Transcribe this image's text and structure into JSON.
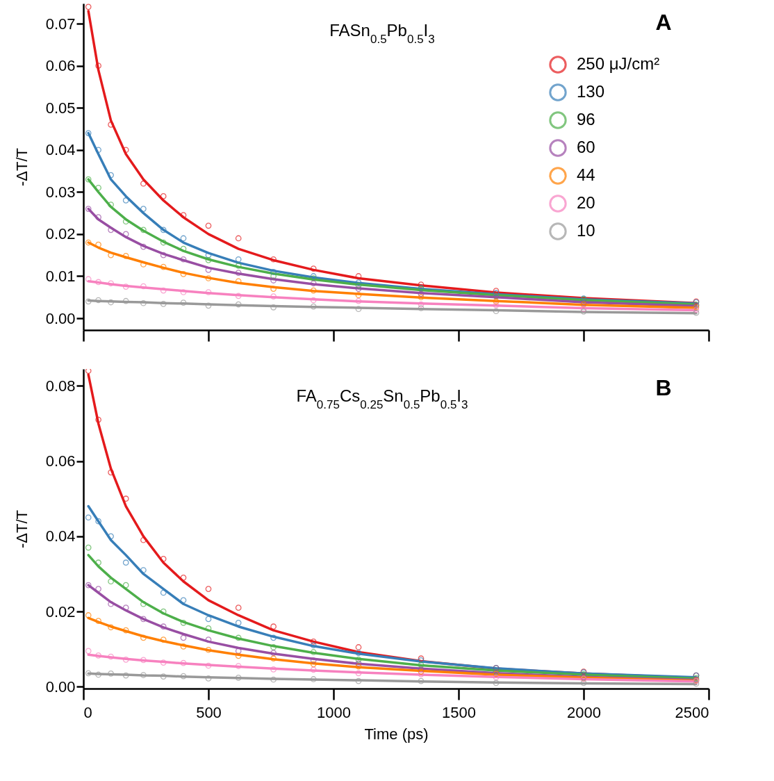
{
  "chart_data": [
    {
      "type": "scatter",
      "title": "FASn$_{0.5}$Pb$_{0.5}$I$_{3}$",
      "ylabel": "-ΔT/T",
      "annotations": [
        "A"
      ],
      "line_style": "solid",
      "legend": "top right",
      "tick_labels": "y",
      "x": [
        20,
        60,
        110,
        170,
        240,
        320,
        400,
        500,
        620,
        760,
        920,
        1100,
        1350,
        1650,
        2000,
        2450
      ],
      "xlim": [
        0,
        2500
      ],
      "xticks": [
        0,
        500,
        1000,
        1500,
        2000,
        2500
      ],
      "ylim": [
        -0.0028,
        0.0748
      ],
      "yticks": [
        {
          "value": 0,
          "label": "0.00"
        },
        0.01,
        0.02,
        0.03,
        0.04,
        0.05,
        0.06,
        0.07
      ],
      "series": [
        {
          "type": "scatter",
          "marker": "circle",
          "name": "250 μJ/cm²",
          "color": "#e41a1c",
          "values": [
            0.074,
            0.06,
            0.046,
            0.04,
            0.032,
            0.029,
            0.0245,
            0.022,
            0.019,
            0.014,
            0.0118,
            0.01,
            0.008,
            0.0065,
            0.0045,
            0.004
          ]
        },
        {
          "type": "scatter",
          "marker": "circle",
          "name": "130",
          "color": "#377eb8",
          "values": [
            0.044,
            0.04,
            0.034,
            0.028,
            0.026,
            0.021,
            0.019,
            0.015,
            0.014,
            0.011,
            0.01,
            0.0085,
            0.0072,
            0.006,
            0.0047,
            0.0038
          ]
        },
        {
          "type": "scatter",
          "marker": "circle",
          "name": "96",
          "color": "#4daf4a",
          "values": [
            0.033,
            0.031,
            0.027,
            0.023,
            0.021,
            0.018,
            0.0165,
            0.0138,
            0.0125,
            0.01,
            0.0095,
            0.0078,
            0.007,
            0.0053,
            0.0045,
            0.0032
          ]
        },
        {
          "type": "scatter",
          "marker": "circle",
          "name": "60",
          "color": "#984ea3",
          "values": [
            0.026,
            0.024,
            0.021,
            0.02,
            0.017,
            0.015,
            0.014,
            0.0115,
            0.0108,
            0.009,
            0.0083,
            0.007,
            0.0058,
            0.0052,
            0.0036,
            0.003
          ]
        },
        {
          "type": "scatter",
          "marker": "circle",
          "name": "44",
          "color": "#ff7f00",
          "values": [
            0.018,
            0.0175,
            0.015,
            0.0148,
            0.0128,
            0.0122,
            0.0105,
            0.0095,
            0.0088,
            0.007,
            0.0066,
            0.0055,
            0.005,
            0.004,
            0.0033,
            0.0026
          ]
        },
        {
          "type": "scatter",
          "marker": "circle",
          "name": "20",
          "color": "#f781bf",
          "values": [
            0.0093,
            0.0086,
            0.0083,
            0.0075,
            0.0076,
            0.0066,
            0.0062,
            0.0062,
            0.0053,
            0.0052,
            0.0043,
            0.0041,
            0.0033,
            0.0031,
            0.0022,
            0.002
          ]
        },
        {
          "type": "scatter",
          "marker": "circle",
          "name": "10",
          "color": "#999999",
          "values": [
            0.004,
            0.0043,
            0.0038,
            0.0041,
            0.0036,
            0.0034,
            0.0037,
            0.003,
            0.0033,
            0.0026,
            0.0028,
            0.0022,
            0.0024,
            0.0017,
            0.0016,
            0.0013
          ]
        },
        {
          "type": "line",
          "color": "#e41a1c",
          "values": [
            0.073,
            0.059,
            0.047,
            0.039,
            0.033,
            0.028,
            0.024,
            0.02,
            0.0165,
            0.0138,
            0.0115,
            0.0095,
            0.0078,
            0.0061,
            0.0048,
            0.0036
          ]
        },
        {
          "type": "line",
          "color": "#377eb8",
          "values": [
            0.044,
            0.039,
            0.033,
            0.029,
            0.025,
            0.021,
            0.018,
            0.0155,
            0.0132,
            0.0113,
            0.0097,
            0.0084,
            0.007,
            0.0057,
            0.0045,
            0.0035
          ]
        },
        {
          "type": "line",
          "color": "#4daf4a",
          "values": [
            0.033,
            0.03,
            0.0265,
            0.0235,
            0.0208,
            0.0182,
            0.016,
            0.014,
            0.0122,
            0.0106,
            0.0092,
            0.008,
            0.0067,
            0.0055,
            0.0043,
            0.0033
          ]
        },
        {
          "type": "line",
          "color": "#984ea3",
          "values": [
            0.026,
            0.0235,
            0.0215,
            0.0193,
            0.0172,
            0.0153,
            0.0138,
            0.012,
            0.0106,
            0.0093,
            0.0081,
            0.0071,
            0.006,
            0.005,
            0.0038,
            0.0029
          ]
        },
        {
          "type": "line",
          "color": "#ff7f00",
          "values": [
            0.018,
            0.0168,
            0.0156,
            0.0145,
            0.0133,
            0.012,
            0.0108,
            0.0096,
            0.0084,
            0.0074,
            0.0065,
            0.0058,
            0.0049,
            0.0041,
            0.0032,
            0.0025
          ]
        },
        {
          "type": "line",
          "color": "#f781bf",
          "values": [
            0.0088,
            0.0085,
            0.0081,
            0.0077,
            0.0073,
            0.0069,
            0.0065,
            0.006,
            0.0055,
            0.005,
            0.0045,
            0.004,
            0.0035,
            0.003,
            0.0024,
            0.0019
          ]
        },
        {
          "type": "line",
          "color": "#999999",
          "values": [
            0.0042,
            0.0041,
            0.004,
            0.0039,
            0.0038,
            0.0036,
            0.0035,
            0.0033,
            0.0031,
            0.0029,
            0.0027,
            0.0025,
            0.0022,
            0.0019,
            0.0015,
            0.0012
          ]
        }
      ]
    },
    {
      "type": "scatter",
      "title": "FA$_{0.75}$Cs$_{0.25}$Sn$_{0.5}$Pb$_{0.5}$I$_{3}$",
      "xlabel": "Time (ps)",
      "ylabel": "-ΔT/T",
      "annotations": [
        "B"
      ],
      "line_style": "solid",
      "x": [
        20,
        60,
        110,
        170,
        240,
        320,
        400,
        500,
        620,
        760,
        920,
        1100,
        1350,
        1650,
        2000,
        2450
      ],
      "xlim": [
        0,
        2500
      ],
      "xticks": [
        0,
        500,
        1000,
        1500,
        2000,
        2500
      ],
      "ylim": [
        -0.0005,
        0.0845
      ],
      "yticks": [
        {
          "value": 0,
          "label": "0.00"
        },
        0.02,
        0.04,
        0.06,
        0.08
      ],
      "series": [
        {
          "type": "scatter",
          "marker": "circle",
          "color": "#e41a1c",
          "values": [
            0.084,
            0.071,
            0.057,
            0.05,
            0.039,
            0.034,
            0.029,
            0.026,
            0.021,
            0.016,
            0.012,
            0.0105,
            0.0075,
            0.005,
            0.004,
            0.003
          ]
        },
        {
          "type": "scatter",
          "marker": "circle",
          "color": "#377eb8",
          "values": [
            0.045,
            0.044,
            0.04,
            0.033,
            0.031,
            0.025,
            0.023,
            0.018,
            0.017,
            0.013,
            0.011,
            0.009,
            0.007,
            0.005,
            0.0038,
            0.003
          ]
        },
        {
          "type": "scatter",
          "marker": "circle",
          "color": "#4daf4a",
          "values": [
            0.037,
            0.033,
            0.028,
            0.027,
            0.022,
            0.02,
            0.017,
            0.0155,
            0.013,
            0.0105,
            0.0092,
            0.0072,
            0.0058,
            0.004,
            0.0033,
            0.0023
          ]
        },
        {
          "type": "scatter",
          "marker": "circle",
          "color": "#984ea3",
          "values": [
            0.027,
            0.026,
            0.022,
            0.021,
            0.018,
            0.016,
            0.013,
            0.0125,
            0.0095,
            0.009,
            0.007,
            0.0062,
            0.0046,
            0.0038,
            0.0025,
            0.0019
          ]
        },
        {
          "type": "scatter",
          "marker": "circle",
          "color": "#ff7f00",
          "values": [
            0.019,
            0.0175,
            0.0158,
            0.015,
            0.013,
            0.0125,
            0.0107,
            0.0098,
            0.0082,
            0.0075,
            0.006,
            0.0054,
            0.004,
            0.0034,
            0.0022,
            0.0017
          ]
        },
        {
          "type": "scatter",
          "marker": "circle",
          "color": "#f781bf",
          "values": [
            0.0095,
            0.0083,
            0.008,
            0.0072,
            0.0071,
            0.0064,
            0.0063,
            0.0056,
            0.0055,
            0.0046,
            0.0045,
            0.0036,
            0.0033,
            0.0025,
            0.0021,
            0.0015
          ]
        },
        {
          "type": "scatter",
          "marker": "circle",
          "color": "#999999",
          "values": [
            0.0036,
            0.0032,
            0.0035,
            0.003,
            0.0031,
            0.0027,
            0.0028,
            0.0022,
            0.0024,
            0.0019,
            0.002,
            0.0015,
            0.0015,
            0.001,
            0.001,
            0.0008
          ]
        },
        {
          "type": "line",
          "color": "#e41a1c",
          "values": [
            0.083,
            0.07,
            0.058,
            0.048,
            0.04,
            0.033,
            0.028,
            0.023,
            0.019,
            0.015,
            0.012,
            0.0092,
            0.0068,
            0.0048,
            0.0035,
            0.0023
          ]
        },
        {
          "type": "line",
          "color": "#377eb8",
          "values": [
            0.048,
            0.044,
            0.039,
            0.035,
            0.03,
            0.026,
            0.022,
            0.019,
            0.016,
            0.0133,
            0.0108,
            0.0088,
            0.0067,
            0.0049,
            0.0035,
            0.0025
          ]
        },
        {
          "type": "line",
          "color": "#4daf4a",
          "values": [
            0.035,
            0.032,
            0.029,
            0.026,
            0.0225,
            0.0195,
            0.0172,
            0.015,
            0.0128,
            0.0108,
            0.009,
            0.0074,
            0.0057,
            0.0043,
            0.0032,
            0.0022
          ]
        },
        {
          "type": "line",
          "color": "#984ea3",
          "values": [
            0.027,
            0.025,
            0.0225,
            0.0203,
            0.018,
            0.0158,
            0.014,
            0.012,
            0.0103,
            0.0088,
            0.0074,
            0.0061,
            0.0048,
            0.0036,
            0.0026,
            0.0018
          ]
        },
        {
          "type": "line",
          "color": "#ff7f00",
          "values": [
            0.0183,
            0.0172,
            0.016,
            0.0148,
            0.0134,
            0.0121,
            0.011,
            0.0097,
            0.0085,
            0.0073,
            0.0062,
            0.0052,
            0.0042,
            0.0032,
            0.0024,
            0.0016
          ]
        },
        {
          "type": "line",
          "color": "#f781bf",
          "values": [
            0.0085,
            0.0082,
            0.0078,
            0.0074,
            0.007,
            0.0066,
            0.0062,
            0.0058,
            0.0053,
            0.0048,
            0.0043,
            0.0038,
            0.0032,
            0.0026,
            0.002,
            0.0014
          ]
        },
        {
          "type": "line",
          "color": "#999999",
          "values": [
            0.0035,
            0.0034,
            0.0033,
            0.0032,
            0.003,
            0.0029,
            0.0027,
            0.0025,
            0.0023,
            0.0021,
            0.0019,
            0.0017,
            0.0014,
            0.0011,
            0.0009,
            0.0007
          ]
        }
      ]
    }
  ]
}
